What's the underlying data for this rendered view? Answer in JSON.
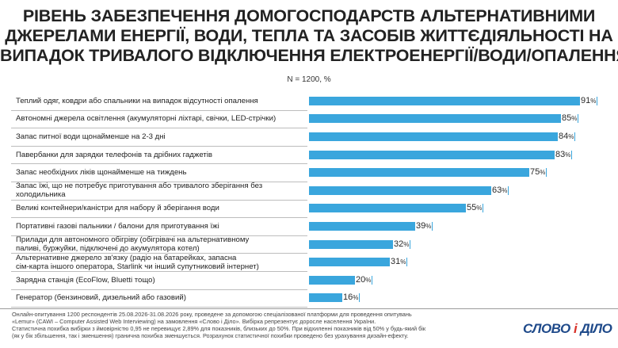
{
  "title_lines": [
    "РІВЕНЬ ЗАБЕЗПЕЧЕННЯ ДОМОГОСПОДАРСТВ АЛЬТЕРНАТИВНИМИ",
    "ДЖЕРЕЛАМИ ЕНЕРГІЇ, ВОДИ, ТЕПЛА ТА ЗАСОБІВ ЖИТТЄДІЯЛЬНОСТІ НА",
    "ВИПАДОК ТРИВАЛОГО ВІДКЛЮЧЕННЯ ЕЛЕКТРОЕНЕРГІЇ/ВОДИ/ОПАЛЕННЯ"
  ],
  "subtitle": "N = 1200, %",
  "colors": {
    "bar": "#3aa6dd",
    "logo_primary": "#1f4a8a",
    "logo_accent": "#d8322a"
  },
  "chart_data": {
    "type": "bar",
    "orientation": "horizontal",
    "unit": "%",
    "xlim": [
      0,
      100
    ],
    "grid": false,
    "categories": [
      "Теплий одяг, ковдри або спальники на випадок відсутності опалення",
      "Автономні джерела освітлення (акумуляторні ліхтарі, свічки, LED-стрічки)",
      "Запас питної води щонайменше на 2-3 дні",
      "Павербанки для зарядки телефонів та дрібних гаджетів",
      "Запас необхідних ліків щонайменше на тиждень",
      "Запас їжі, що не потребує приготування або тривалого зберігання  без холодильника",
      "Великі контейнери/каністри для набору й зберігання води",
      "Портативні газові пальники / балони для приготування їжі",
      "Прилади для автономного обігріву (обігрівачі на альтернативному\nпаливі, буржуйки, підключені до акумулятора котел)",
      "Альтернативне джерело зв'язку (радіо на батарейках, запасна\nсім-карта іншого оператора, Starlink чи інший супутниковий інтернет)",
      "Зарядна станція (EcoFlow, Bluetti тощо)",
      "Генератор (бензиновий, дизельний або газовий)"
    ],
    "values": [
      91,
      85,
      84,
      83,
      75,
      63,
      55,
      39,
      32,
      31,
      20,
      16
    ]
  },
  "footer_lines": [
    "Онлайн-опитування 1200 респондентів 25.08.2026-31.08.2026 року, проведене за допомогою спеціалізованої платформи для проведення опитувань",
    "«Lemur» (CAWI – Computer Assisted Web Interviewing) на замовлення «Слово і Діло». Вибірка репрезентує доросле населення України.",
    "Статистична похибка вибірки з ймовірністю 0,95 не перевищує 2,89% для показників, близьких до 50%. При відхиленні показників від 50% у будь-який бік",
    "(як у бік збільшення, так і зменшення) гранична похибка зменшується. Розрахунок статистичної похибки проведено без урахування дизайн-ефекту."
  ],
  "logo": {
    "part1": "СЛОВО ",
    "part2": "і",
    "part3": " ДІЛО"
  }
}
